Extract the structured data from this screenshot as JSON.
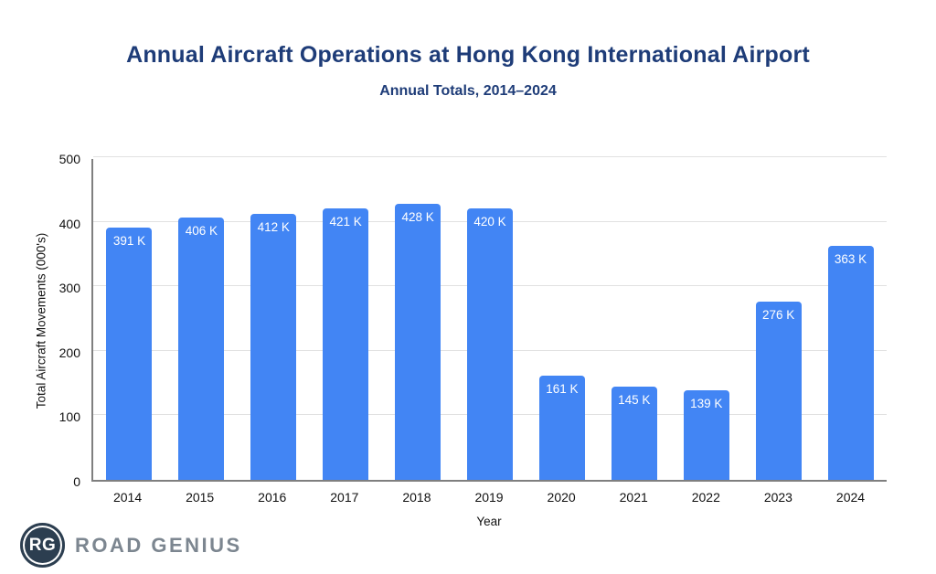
{
  "header": {
    "title": "Annual Aircraft Operations at Hong Kong International Airport",
    "subtitle": "Annual Totals, 2014–2024"
  },
  "chart_data": {
    "type": "bar",
    "title": "Annual Aircraft Operations at Hong Kong International Airport",
    "subtitle": "Annual Totals, 2014–2024",
    "categories": [
      "2014",
      "2015",
      "2016",
      "2017",
      "2018",
      "2019",
      "2020",
      "2021",
      "2022",
      "2023",
      "2024"
    ],
    "values": [
      391,
      406,
      412,
      421,
      428,
      420,
      161,
      145,
      139,
      276,
      363
    ],
    "bar_labels": [
      "391 K",
      "406 K",
      "412 K",
      "421 K",
      "428 K",
      "420 K",
      "161 K",
      "145 K",
      "139 K",
      "276 K",
      "363 K"
    ],
    "xlabel": "Year",
    "ylabel": "Total Aircraft Movements (000's)",
    "ylim": [
      0,
      500
    ],
    "yticks": [
      0,
      100,
      200,
      300,
      400,
      500
    ],
    "grid": true,
    "legend": false,
    "bar_color": "#4285f4",
    "value_label_color": "#ffffff"
  },
  "footer": {
    "logo_badge": "RG",
    "logo_text": "ROAD GENIUS"
  },
  "colors": {
    "title": "#1e3c78",
    "bar": "#4285f4",
    "gridline": "#e1e1e1",
    "axis": "#7f7f7f",
    "logo_badge_bg": "#2c3e50",
    "logo_text": "#7c8690"
  }
}
